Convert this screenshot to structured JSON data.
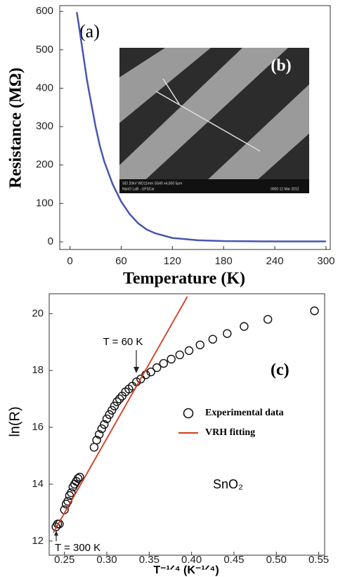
{
  "chart_data": [
    {
      "type": "line",
      "color": "#4a55b0",
      "x": [
        8,
        10,
        15,
        20,
        25,
        30,
        35,
        40,
        50,
        60,
        70,
        80,
        90,
        100,
        120,
        150,
        180,
        240,
        300
      ],
      "values": [
        598,
        570,
        495,
        420,
        360,
        300,
        250,
        210,
        150,
        105,
        72,
        48,
        32,
        22,
        10,
        4,
        2,
        1,
        1
      ],
      "xlim": [
        -12,
        305
      ],
      "ylim": [
        -20,
        615
      ],
      "xticks": [
        0,
        60,
        120,
        180,
        240,
        300
      ],
      "yticks": [
        0,
        100,
        200,
        300,
        400,
        500,
        600
      ],
      "x_label": "Temperature (K)",
      "y_label": "Resistance (MΩ)",
      "annotations": [
        "(a)"
      ],
      "inset": {
        "label": "(b)",
        "footer": [
          "SEI   20kV   WD11mm   SS40   x4,500   5μm",
          "NanO LaB - UFSCar",
          "0000   12 Mar 2012"
        ]
      }
    },
    {
      "type": "scatter",
      "series": [
        {
          "name": "Experimental data",
          "mode": "markers",
          "color": "#111111",
          "x": [
            0.24,
            0.242,
            0.244,
            0.25,
            0.252,
            0.254,
            0.256,
            0.258,
            0.26,
            0.262,
            0.264,
            0.266,
            0.268,
            0.285,
            0.288,
            0.291,
            0.294,
            0.297,
            0.3,
            0.303,
            0.306,
            0.309,
            0.312,
            0.315,
            0.318,
            0.322,
            0.326,
            0.33,
            0.335,
            0.34,
            0.346,
            0.352,
            0.359,
            0.367,
            0.376,
            0.386,
            0.397,
            0.41,
            0.425,
            0.442,
            0.462,
            0.49,
            0.545
          ],
          "values": [
            12.5,
            12.6,
            12.6,
            13.1,
            13.3,
            13.4,
            13.6,
            13.7,
            13.9,
            14.0,
            14.1,
            14.2,
            14.25,
            15.3,
            15.55,
            15.75,
            15.95,
            16.1,
            16.3,
            16.45,
            16.6,
            16.75,
            16.9,
            17.0,
            17.1,
            17.25,
            17.35,
            17.45,
            17.6,
            17.7,
            17.85,
            17.95,
            18.1,
            18.25,
            18.4,
            18.55,
            18.7,
            18.9,
            19.1,
            19.3,
            19.55,
            19.8,
            20.1
          ]
        },
        {
          "name": "VRH fitting",
          "mode": "line",
          "color": "#d23a1e",
          "x": [
            0.237,
            0.395
          ],
          "values": [
            12.3,
            20.6
          ]
        }
      ],
      "xlim": [
        0.232,
        0.557
      ],
      "ylim": [
        11.5,
        20.7
      ],
      "xticks": [
        0.25,
        {
          "value": 0.3,
          "label": "0.30"
        },
        0.35,
        {
          "value": 0.4,
          "label": "0.40"
        },
        0.45,
        {
          "value": 0.5,
          "label": "0.50"
        },
        0.55
      ],
      "yticks": [
        12,
        14,
        16,
        18,
        20
      ],
      "x_label": "T⁻¹ᐟ⁴ (K⁻¹ᐟ⁴)",
      "y_label": "ln(R)",
      "annotations": [
        "T = 60 K",
        "T = 300 K",
        "(c)",
        "SnO₂"
      ]
    }
  ]
}
